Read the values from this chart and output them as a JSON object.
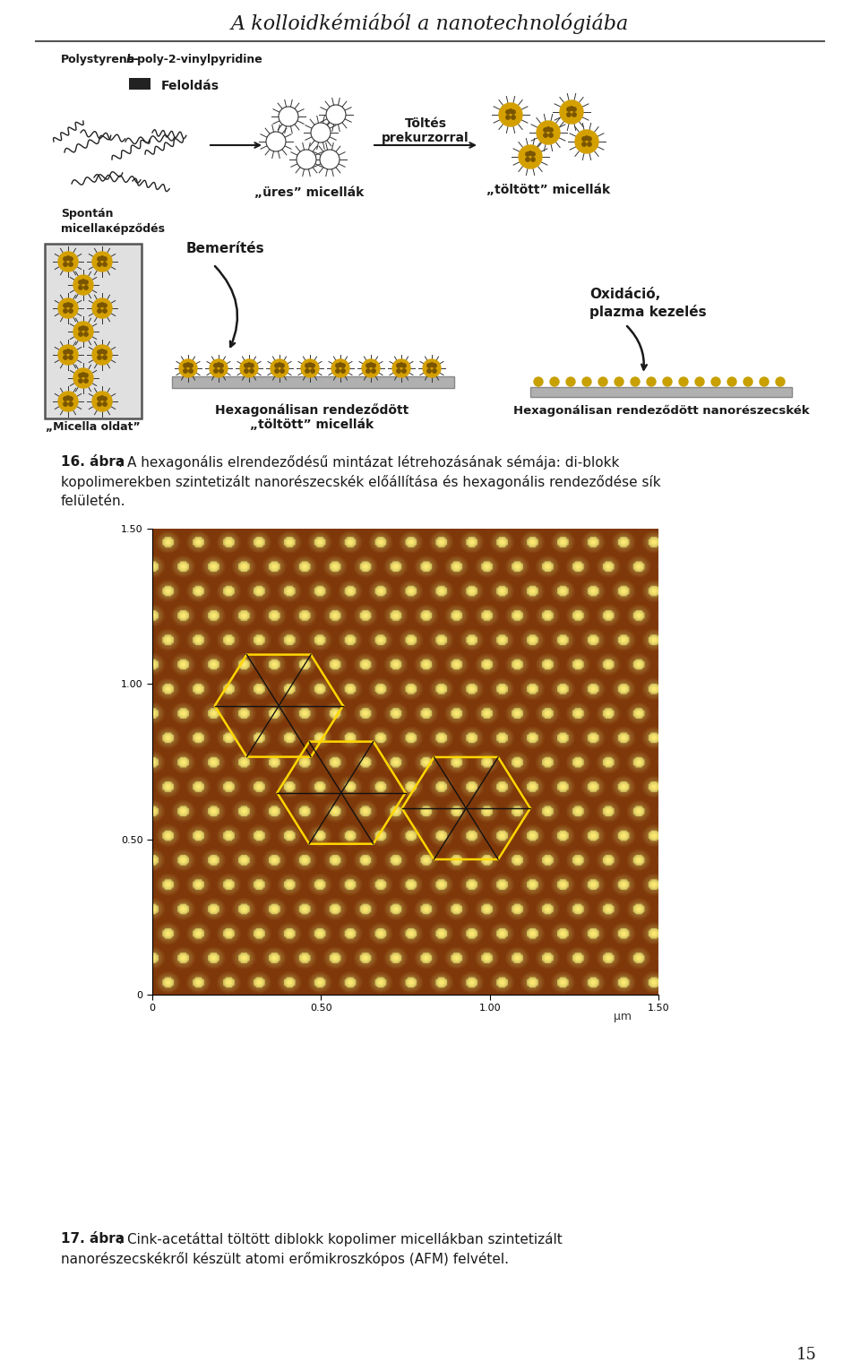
{
  "title": "A kolloidkémiából a nanotechnológiába",
  "page_number": "15",
  "label_feloldas": "Feloldás",
  "label_spontan": "Spontán\nmicellaкépződés",
  "label_toltes": "Töltés\nprekurzorral",
  "label_ures": "„üres” micellák",
  "label_toltott": "„töltött” micellák",
  "label_bemerites": "Bemerítés",
  "label_oxidacio": "Oxidáció,\nplazma kezelés",
  "label_hex_micella": "Hexagonálisan rendeződött\n„töltött” micellák",
  "label_hex_nano": "Hexagonálisan rendeződött nanorészecskék",
  "label_micella_oldat": "„Micella oldat”",
  "bg_color": "#ffffff",
  "text_color": "#1a1a1a",
  "arrow_color": "#1a1a1a"
}
